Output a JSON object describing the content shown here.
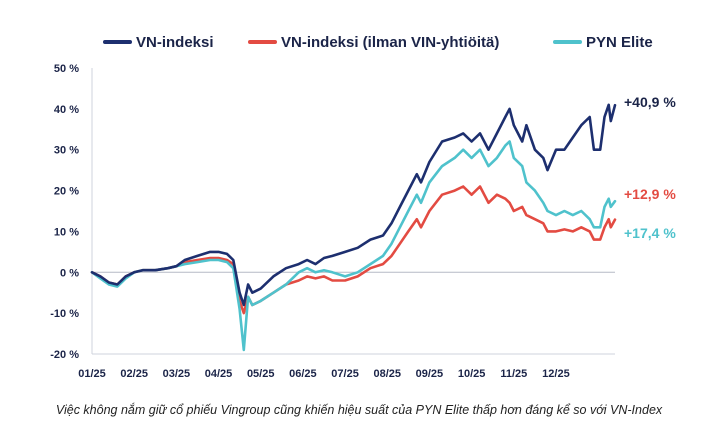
{
  "caption": "Việc không nắm giữ cổ phiếu Vingroup cũng khiến hiệu suất của PYN Elite thấp hơn đáng kể so với VN-Index",
  "chart_data": {
    "type": "line",
    "title": "",
    "xlabel": "",
    "ylabel": "",
    "x_ticks": [
      "01/25",
      "02/25",
      "03/25",
      "04/25",
      "05/25",
      "06/25",
      "07/25",
      "08/25",
      "09/25",
      "10/25",
      "11/25",
      "12/25"
    ],
    "y_ticks": [
      "50 %",
      "40 %",
      "30 %",
      "20 %",
      "10 %",
      "0 %",
      "-10 %",
      "-20 %"
    ],
    "y_tick_values": [
      50,
      40,
      30,
      20,
      10,
      0,
      -10,
      -20
    ],
    "ylim": [
      -20,
      50
    ],
    "x_range_months": [
      0,
      12.4
    ],
    "grid": false,
    "legend_position": "top",
    "series": [
      {
        "name": "VN-indeksi",
        "color": "#1d2f6f",
        "end_label": "+40,9 %",
        "points": [
          [
            0,
            0
          ],
          [
            0.2,
            -1
          ],
          [
            0.4,
            -2.5
          ],
          [
            0.6,
            -3
          ],
          [
            0.8,
            -1
          ],
          [
            1,
            0
          ],
          [
            1.2,
            0.5
          ],
          [
            1.5,
            0.5
          ],
          [
            1.8,
            1
          ],
          [
            2,
            1.5
          ],
          [
            2.2,
            3
          ],
          [
            2.5,
            4
          ],
          [
            2.8,
            5
          ],
          [
            3,
            5
          ],
          [
            3.2,
            4.5
          ],
          [
            3.35,
            3
          ],
          [
            3.5,
            -5
          ],
          [
            3.6,
            -8
          ],
          [
            3.7,
            -3
          ],
          [
            3.8,
            -5
          ],
          [
            4,
            -4
          ],
          [
            4.3,
            -1
          ],
          [
            4.6,
            1
          ],
          [
            4.9,
            2
          ],
          [
            5.1,
            3
          ],
          [
            5.3,
            2
          ],
          [
            5.5,
            3.5
          ],
          [
            5.7,
            4
          ],
          [
            6,
            5
          ],
          [
            6.3,
            6
          ],
          [
            6.6,
            8
          ],
          [
            6.9,
            9
          ],
          [
            7.1,
            12
          ],
          [
            7.3,
            16
          ],
          [
            7.5,
            20
          ],
          [
            7.7,
            24
          ],
          [
            7.8,
            22
          ],
          [
            8,
            27
          ],
          [
            8.3,
            32
          ],
          [
            8.6,
            33
          ],
          [
            8.8,
            34
          ],
          [
            9,
            32
          ],
          [
            9.2,
            34
          ],
          [
            9.4,
            30
          ],
          [
            9.6,
            34
          ],
          [
            9.8,
            38
          ],
          [
            9.9,
            40
          ],
          [
            10,
            36
          ],
          [
            10.2,
            32
          ],
          [
            10.3,
            36
          ],
          [
            10.5,
            30
          ],
          [
            10.7,
            28
          ],
          [
            10.8,
            25
          ],
          [
            11,
            30
          ],
          [
            11.2,
            30
          ],
          [
            11.4,
            33
          ],
          [
            11.6,
            36
          ],
          [
            11.8,
            38
          ],
          [
            11.9,
            30
          ],
          [
            12.05,
            30
          ],
          [
            12.15,
            38
          ],
          [
            12.25,
            41
          ],
          [
            12.3,
            37
          ],
          [
            12.4,
            40.9
          ]
        ]
      },
      {
        "name": "VN-indeksi (ilman VIN-yhtiöitä)",
        "color": "#e34b42",
        "end_label": "+12,9 %",
        "points": [
          [
            0,
            0
          ],
          [
            0.2,
            -1
          ],
          [
            0.4,
            -2.5
          ],
          [
            0.6,
            -3
          ],
          [
            0.8,
            -1
          ],
          [
            1,
            0
          ],
          [
            1.2,
            0.5
          ],
          [
            1.5,
            0.5
          ],
          [
            1.8,
            1
          ],
          [
            2,
            1.5
          ],
          [
            2.2,
            2.5
          ],
          [
            2.5,
            3
          ],
          [
            2.8,
            3.5
          ],
          [
            3,
            3.5
          ],
          [
            3.2,
            3
          ],
          [
            3.35,
            2
          ],
          [
            3.5,
            -7
          ],
          [
            3.6,
            -10
          ],
          [
            3.7,
            -6
          ],
          [
            3.8,
            -8
          ],
          [
            4,
            -7
          ],
          [
            4.3,
            -5
          ],
          [
            4.6,
            -3
          ],
          [
            4.9,
            -2
          ],
          [
            5.1,
            -1
          ],
          [
            5.3,
            -1.5
          ],
          [
            5.5,
            -1
          ],
          [
            5.7,
            -2
          ],
          [
            6,
            -2
          ],
          [
            6.3,
            -1
          ],
          [
            6.6,
            1
          ],
          [
            6.9,
            2
          ],
          [
            7.1,
            4
          ],
          [
            7.3,
            7
          ],
          [
            7.5,
            10
          ],
          [
            7.7,
            13
          ],
          [
            7.8,
            11
          ],
          [
            8,
            15
          ],
          [
            8.3,
            19
          ],
          [
            8.6,
            20
          ],
          [
            8.8,
            21
          ],
          [
            9,
            19
          ],
          [
            9.2,
            21
          ],
          [
            9.4,
            17
          ],
          [
            9.6,
            19
          ],
          [
            9.8,
            18
          ],
          [
            9.9,
            17
          ],
          [
            10,
            15
          ],
          [
            10.2,
            16
          ],
          [
            10.3,
            14
          ],
          [
            10.5,
            13
          ],
          [
            10.7,
            12
          ],
          [
            10.8,
            10
          ],
          [
            11,
            10
          ],
          [
            11.2,
            10.5
          ],
          [
            11.4,
            10
          ],
          [
            11.6,
            11
          ],
          [
            11.8,
            10
          ],
          [
            11.9,
            8
          ],
          [
            12.05,
            8
          ],
          [
            12.15,
            11
          ],
          [
            12.25,
            13
          ],
          [
            12.3,
            11
          ],
          [
            12.4,
            12.9
          ]
        ]
      },
      {
        "name": "PYN Elite",
        "color": "#4fc2cc",
        "end_label": "+17,4 %",
        "points": [
          [
            0,
            0
          ],
          [
            0.2,
            -1.5
          ],
          [
            0.4,
            -3
          ],
          [
            0.6,
            -3.5
          ],
          [
            0.8,
            -1.5
          ],
          [
            1,
            0
          ],
          [
            1.2,
            0.5
          ],
          [
            1.5,
            0.5
          ],
          [
            1.8,
            1
          ],
          [
            2,
            1.5
          ],
          [
            2.2,
            2
          ],
          [
            2.5,
            2.5
          ],
          [
            2.8,
            3
          ],
          [
            3,
            3
          ],
          [
            3.2,
            2.5
          ],
          [
            3.35,
            1
          ],
          [
            3.5,
            -9
          ],
          [
            3.6,
            -19
          ],
          [
            3.7,
            -6
          ],
          [
            3.8,
            -8
          ],
          [
            4,
            -7
          ],
          [
            4.3,
            -5
          ],
          [
            4.6,
            -3
          ],
          [
            4.9,
            0
          ],
          [
            5.1,
            1
          ],
          [
            5.3,
            0
          ],
          [
            5.5,
            0.5
          ],
          [
            5.7,
            0
          ],
          [
            6,
            -1
          ],
          [
            6.3,
            0
          ],
          [
            6.6,
            2
          ],
          [
            6.9,
            4
          ],
          [
            7.1,
            7
          ],
          [
            7.3,
            11
          ],
          [
            7.5,
            15
          ],
          [
            7.7,
            19
          ],
          [
            7.8,
            17
          ],
          [
            8,
            22
          ],
          [
            8.3,
            26
          ],
          [
            8.6,
            28
          ],
          [
            8.8,
            30
          ],
          [
            9,
            28
          ],
          [
            9.2,
            30
          ],
          [
            9.4,
            26
          ],
          [
            9.6,
            28
          ],
          [
            9.8,
            31
          ],
          [
            9.9,
            32
          ],
          [
            10,
            28
          ],
          [
            10.2,
            26
          ],
          [
            10.3,
            22
          ],
          [
            10.5,
            20
          ],
          [
            10.7,
            17
          ],
          [
            10.8,
            15
          ],
          [
            11,
            14
          ],
          [
            11.2,
            15
          ],
          [
            11.4,
            14
          ],
          [
            11.6,
            15
          ],
          [
            11.8,
            13
          ],
          [
            11.9,
            11
          ],
          [
            12.05,
            11
          ],
          [
            12.15,
            16
          ],
          [
            12.25,
            18
          ],
          [
            12.3,
            16
          ],
          [
            12.4,
            17.4
          ]
        ]
      }
    ]
  }
}
